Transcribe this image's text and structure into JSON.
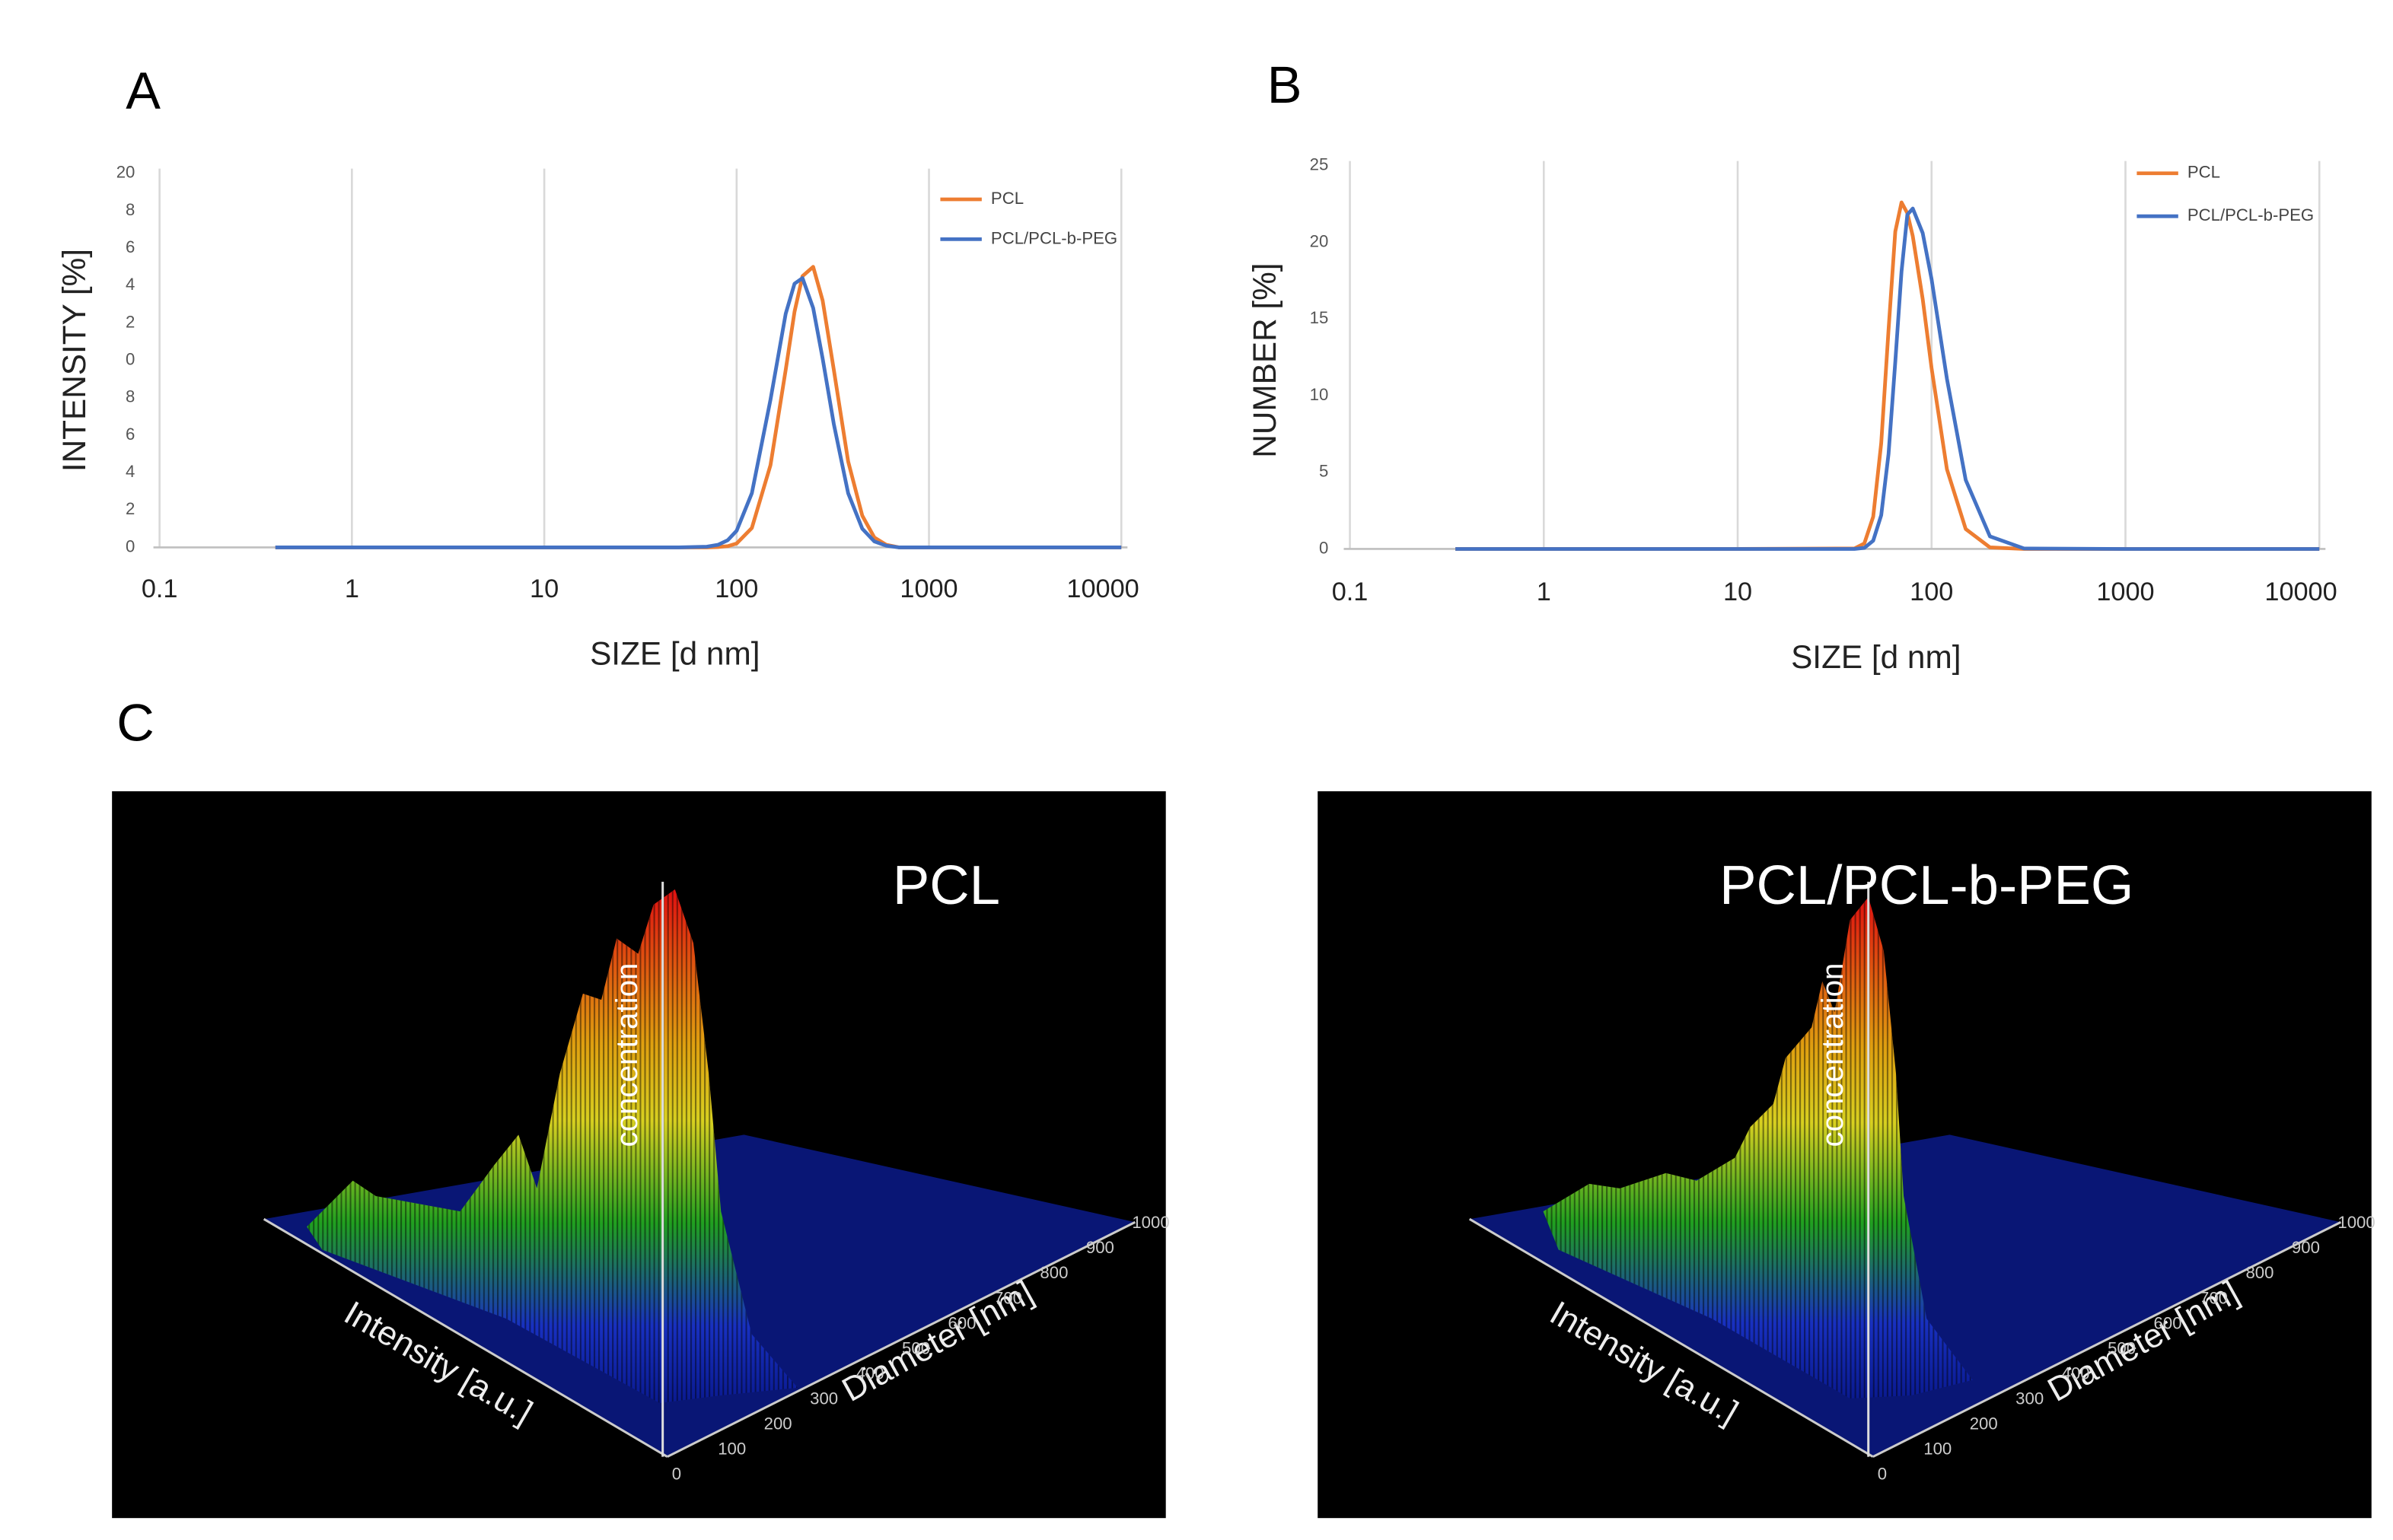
{
  "panel_labels": [
    "A",
    "B",
    "C"
  ],
  "chart_data": [
    {
      "type": "line",
      "x_label": "SIZE [d nm]",
      "y_label": "INTENSITY [%]",
      "xscale": "log",
      "grid": "x",
      "legend": "upper right",
      "xlim": [
        0.1,
        10000
      ],
      "xticks": [
        0.1,
        1,
        10,
        100,
        1000,
        10000
      ],
      "ylim": [
        0,
        20
      ],
      "yticks": [
        0,
        2,
        4,
        6,
        8,
        {
          "value": 10,
          "label": "0"
        },
        {
          "value": 12,
          "label": "2"
        },
        {
          "value": 14,
          "label": "4"
        },
        {
          "value": 16,
          "label": "6"
        },
        {
          "value": 18,
          "label": "8"
        },
        20
      ],
      "x": [
        0.4,
        1,
        10,
        50,
        70,
        80,
        90,
        100,
        120,
        150,
        180,
        200,
        220,
        250,
        280,
        320,
        380,
        450,
        520,
        600,
        700,
        1000,
        10000
      ],
      "series": [
        {
          "name": "PCL",
          "color": "#ed7d31",
          "values": [
            0,
            0,
            0,
            0,
            0,
            0.02,
            0.07,
            0.21,
            1.04,
            4.4,
            9.5,
            12.6,
            14.5,
            15.0,
            13.2,
            9.5,
            4.6,
            1.7,
            0.53,
            0.14,
            0,
            0,
            0
          ]
        },
        {
          "name": "PCL/PCL-b-PEG",
          "color": "#4472c4",
          "values": [
            0,
            0,
            0,
            0,
            0.04,
            0.14,
            0.39,
            0.89,
            2.9,
            7.9,
            12.5,
            14.1,
            14.4,
            12.8,
            10.1,
            6.6,
            2.9,
            1.0,
            0.32,
            0.09,
            0,
            0,
            0
          ]
        }
      ]
    },
    {
      "type": "line",
      "x_label": "SIZE [d nm]",
      "y_label": "NUMBER [%]",
      "xscale": "log",
      "grid": "x",
      "legend": "upper right",
      "xlim": [
        0.1,
        10000
      ],
      "xticks": [
        0.1,
        1,
        10,
        100,
        1000,
        10000
      ],
      "ylim": [
        0,
        25
      ],
      "yticks": [
        0,
        5,
        10,
        15,
        20,
        25
      ],
      "x": [
        0.35,
        1,
        10,
        40,
        45,
        50,
        55,
        60,
        65,
        70,
        75,
        80,
        90,
        100,
        120,
        150,
        200,
        300,
        1000,
        10000
      ],
      "series": [
        {
          "name": "PCL",
          "color": "#ed7d31",
          "values": [
            0,
            0,
            0,
            0.03,
            0.36,
            2.1,
            6.9,
            14.3,
            20.7,
            22.6,
            21.9,
            20.4,
            16.3,
            11.8,
            5.2,
            1.3,
            0.1,
            0,
            0,
            0
          ]
        },
        {
          "name": "PCL/PCL-b-PEG",
          "color": "#4472c4",
          "values": [
            0,
            0,
            0,
            0,
            0.07,
            0.54,
            2.2,
            6.2,
            12.2,
            18.1,
            21.8,
            22.2,
            20.6,
            17.6,
            11.1,
            4.5,
            0.82,
            0.03,
            0,
            0
          ]
        }
      ]
    }
  ],
  "panel_c": {
    "plots": [
      {
        "title": "PCL"
      },
      {
        "title": "PCL/PCL-b-PEG"
      }
    ],
    "z_label": "concentration",
    "x_label": "Intensity [a.u.]",
    "y_label": "Diameter [nm]",
    "y_ticks": [
      0,
      100,
      200,
      300,
      400,
      500,
      600,
      700,
      800,
      900,
      1000
    ]
  }
}
